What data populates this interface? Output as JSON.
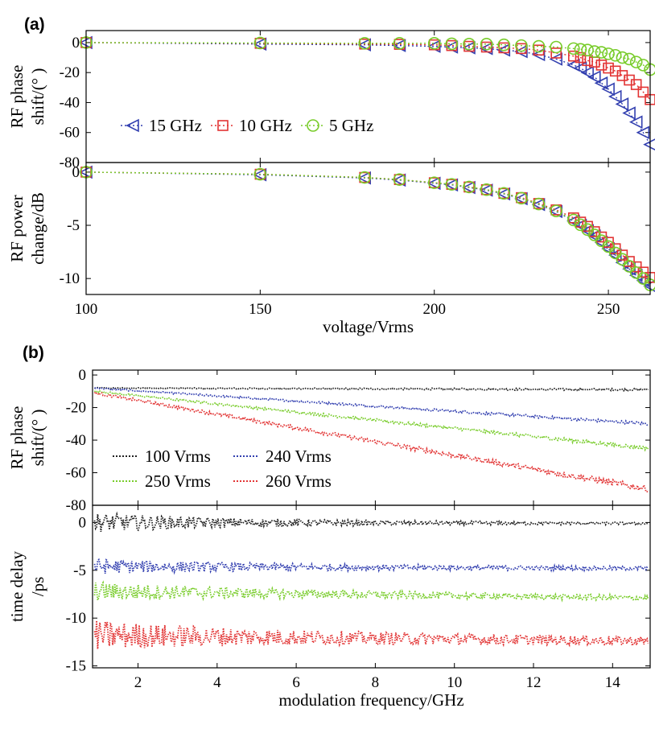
{
  "panels": {
    "a": {
      "label": "(a)"
    },
    "b": {
      "label": "(b)"
    }
  },
  "colors": {
    "blue": "#3340b0",
    "red": "#e23434",
    "green": "#78cc2a",
    "black": "#222222"
  },
  "chart_data": [
    {
      "id": "a-top",
      "type": "line",
      "title": "",
      "xlabel": "",
      "ylabel_lines": [
        "RF phase",
        "shift/(° )"
      ],
      "xlim": [
        100,
        262
      ],
      "ylim": [
        -80,
        8
      ],
      "yticks": [
        0,
        -20,
        -40,
        -60,
        -80
      ],
      "xticks": [
        100,
        150,
        200,
        250
      ],
      "show_xticklabels": false,
      "legend_placement": "lower-left",
      "series": [
        {
          "name": "15 GHz",
          "color": "#3340b0",
          "marker": "triangle-left",
          "x": [
            100,
            150,
            180,
            190,
            200,
            205,
            210,
            215,
            220,
            225,
            230,
            235,
            240,
            242,
            244,
            246,
            248,
            250,
            252,
            254,
            256,
            258,
            260,
            262
          ],
          "y": [
            0,
            -1,
            -1.5,
            -2,
            -2.5,
            -3,
            -3.5,
            -4,
            -5,
            -6,
            -8,
            -11,
            -15,
            -17,
            -20,
            -23,
            -27,
            -31,
            -36,
            -41,
            -47,
            -53,
            -60,
            -68
          ]
        },
        {
          "name": "10 GHz",
          "color": "#e23434",
          "marker": "square",
          "x": [
            100,
            150,
            180,
            190,
            200,
            205,
            210,
            215,
            220,
            225,
            230,
            235,
            240,
            242,
            244,
            246,
            248,
            250,
            252,
            254,
            256,
            258,
            260,
            262
          ],
          "y": [
            0,
            -0.5,
            -1,
            -1.2,
            -1.5,
            -2,
            -2.5,
            -3,
            -3.5,
            -4,
            -5,
            -7,
            -9,
            -10,
            -12,
            -13,
            -15,
            -17,
            -19,
            -22,
            -25,
            -28,
            -33,
            -38
          ]
        },
        {
          "name": "5 GHz",
          "color": "#78cc2a",
          "marker": "circle",
          "x": [
            100,
            150,
            180,
            190,
            200,
            205,
            210,
            215,
            220,
            225,
            230,
            235,
            240,
            242,
            244,
            246,
            248,
            250,
            252,
            254,
            256,
            258,
            260,
            262
          ],
          "y": [
            0,
            -0.3,
            -0.5,
            -0.5,
            -0.5,
            -0.8,
            -1,
            -1,
            -1.5,
            -2,
            -2.5,
            -3,
            -4,
            -4.5,
            -5,
            -6,
            -6.5,
            -7.5,
            -8.5,
            -10,
            -11,
            -13,
            -15,
            -18
          ]
        }
      ]
    },
    {
      "id": "a-bottom",
      "type": "line",
      "title": "",
      "xlabel": "voltage/Vrms",
      "ylabel_lines": [
        "RF power",
        "change/dB"
      ],
      "xlim": [
        100,
        262
      ],
      "ylim": [
        -11.5,
        0.9
      ],
      "yticks": [
        0,
        -5,
        -10
      ],
      "xticks": [
        100,
        150,
        200,
        250
      ],
      "show_xticklabels": true,
      "series": [
        {
          "name": "15 GHz",
          "color": "#3340b0",
          "marker": "triangle-left",
          "x": [
            100,
            150,
            180,
            190,
            200,
            205,
            210,
            215,
            220,
            225,
            230,
            235,
            240,
            242,
            244,
            246,
            248,
            250,
            252,
            254,
            256,
            258,
            260,
            262
          ],
          "y": [
            0,
            -0.25,
            -0.55,
            -0.75,
            -1.05,
            -1.2,
            -1.45,
            -1.7,
            -2.05,
            -2.5,
            -3.05,
            -3.7,
            -4.6,
            -5,
            -5.5,
            -6,
            -6.6,
            -7.2,
            -7.8,
            -8.5,
            -9.1,
            -9.7,
            -10.2,
            -10.7
          ]
        },
        {
          "name": "10 GHz",
          "color": "#e23434",
          "marker": "square",
          "x": [
            100,
            150,
            180,
            190,
            200,
            205,
            210,
            215,
            220,
            225,
            230,
            235,
            240,
            242,
            244,
            246,
            248,
            250,
            252,
            254,
            256,
            258,
            260,
            262
          ],
          "y": [
            0,
            -0.2,
            -0.5,
            -0.7,
            -1,
            -1.15,
            -1.4,
            -1.65,
            -2,
            -2.4,
            -2.95,
            -3.55,
            -4.3,
            -4.7,
            -5.1,
            -5.6,
            -6.1,
            -6.6,
            -7.2,
            -7.8,
            -8.4,
            -8.9,
            -9.4,
            -9.9
          ]
        },
        {
          "name": "5 GHz",
          "color": "#78cc2a",
          "marker": "circle",
          "x": [
            100,
            150,
            180,
            190,
            200,
            205,
            210,
            215,
            220,
            225,
            230,
            235,
            240,
            242,
            244,
            246,
            248,
            250,
            252,
            254,
            256,
            258,
            260,
            262
          ],
          "y": [
            0,
            -0.2,
            -0.5,
            -0.7,
            -1,
            -1.15,
            -1.4,
            -1.65,
            -2,
            -2.45,
            -3,
            -3.65,
            -4.5,
            -4.95,
            -5.4,
            -5.9,
            -6.45,
            -7,
            -7.6,
            -8.2,
            -8.85,
            -9.45,
            -10,
            -10.6
          ]
        }
      ]
    },
    {
      "id": "b-top",
      "type": "line",
      "title": "",
      "xlabel": "",
      "ylabel_lines": [
        "RF phase",
        "shift/(° )"
      ],
      "xlim": [
        0.85,
        14.95
      ],
      "ylim": [
        -80,
        3
      ],
      "yticks": [
        0,
        -20,
        -40,
        -60,
        -80
      ],
      "xticks": [
        2,
        4,
        6,
        8,
        10,
        12,
        14
      ],
      "show_xticklabels": false,
      "legend_placement": "lower-left",
      "series": [
        {
          "name": "100 Vrms",
          "color": "#222222",
          "x": [
            0.9,
            14.9
          ],
          "y": [
            -8,
            -9
          ],
          "noise": 0.5
        },
        {
          "name": "240 Vrms",
          "color": "#3340b0",
          "x": [
            0.9,
            14.9
          ],
          "y": [
            -8,
            -30
          ],
          "noise": 0.7
        },
        {
          "name": "250 Vrms",
          "color": "#78cc2a",
          "x": [
            0.9,
            14.9
          ],
          "y": [
            -10,
            -45
          ],
          "noise": 0.9
        },
        {
          "name": "260 Vrms",
          "color": "#e23434",
          "x": [
            0.9,
            14.9
          ],
          "y": [
            -11,
            -70
          ],
          "noise": 1.4
        }
      ]
    },
    {
      "id": "b-bottom",
      "type": "line",
      "title": "",
      "xlabel": "modulation frequency/GHz",
      "ylabel_lines": [
        "time delay",
        "/ps"
      ],
      "xlim": [
        0.85,
        14.95
      ],
      "ylim": [
        -15.2,
        1.8
      ],
      "yticks": [
        0,
        -5,
        -10,
        -15
      ],
      "xticks": [
        2,
        4,
        6,
        8,
        10,
        12,
        14
      ],
      "show_xticklabels": true,
      "series": [
        {
          "name": "100 Vrms",
          "color": "#222222",
          "x": [
            0.9,
            14.9
          ],
          "y": [
            0,
            -0.1
          ],
          "noise_start": 1.0,
          "noise_end": 0.1
        },
        {
          "name": "240 Vrms",
          "color": "#3340b0",
          "x": [
            0.9,
            14.9
          ],
          "y": [
            -4.6,
            -4.8
          ],
          "noise_start": 0.8,
          "noise_end": 0.2
        },
        {
          "name": "250 Vrms",
          "color": "#78cc2a",
          "x": [
            0.9,
            14.9
          ],
          "y": [
            -7.2,
            -7.9
          ],
          "noise_start": 1.0,
          "noise_end": 0.25
        },
        {
          "name": "260 Vrms",
          "color": "#e23434",
          "x": [
            0.9,
            14.9
          ],
          "y": [
            -11.8,
            -12.4
          ],
          "noise_start": 1.6,
          "noise_end": 0.45
        }
      ]
    }
  ]
}
